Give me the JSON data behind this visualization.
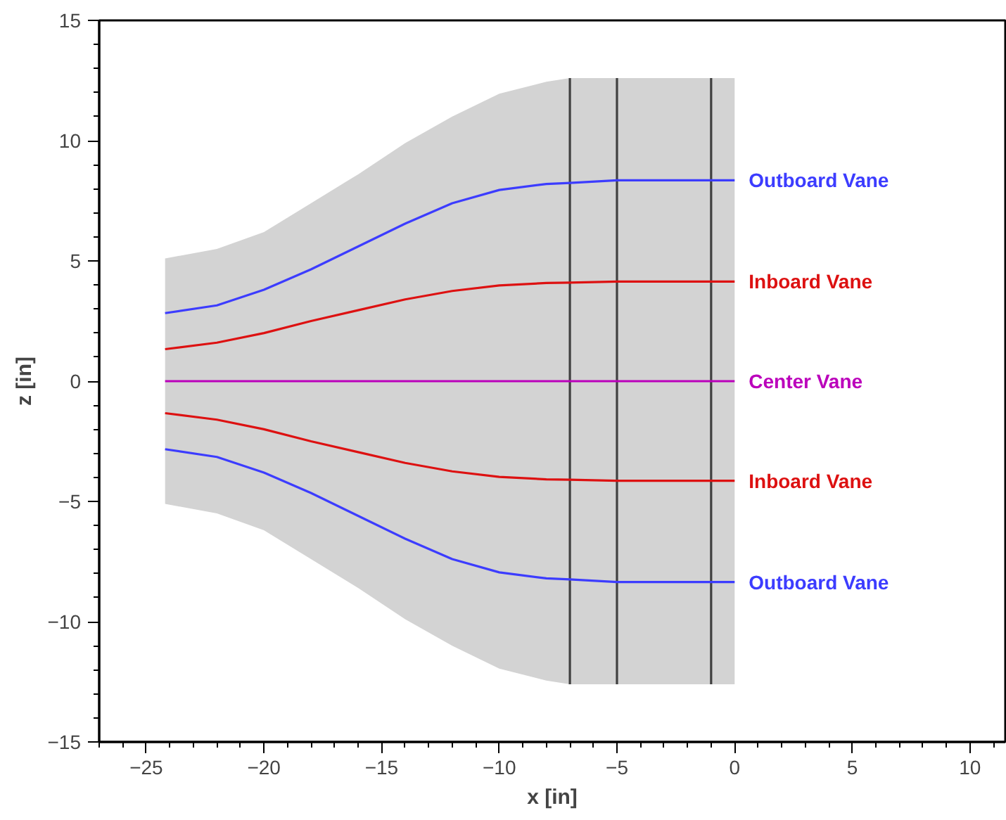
{
  "chart_data": {
    "type": "line",
    "xlabel": "x [in]",
    "ylabel": "z [in]",
    "xlim": [
      -27,
      11.5
    ],
    "ylim": [
      -15,
      15
    ],
    "xticks": [
      -25,
      -20,
      -15,
      -10,
      -5,
      0,
      5,
      10
    ],
    "yticks": [
      -15,
      -10,
      -5,
      0,
      5,
      10,
      15
    ],
    "grid": false,
    "legend": false,
    "marker": "none",
    "line_style": "solid",
    "series": [
      {
        "type": "area",
        "color": "#d3d3d3",
        "x": [
          -24.2,
          -22,
          -20,
          -18,
          -16,
          -14,
          -12,
          -10,
          -8,
          -7,
          -5,
          -1,
          0
        ],
        "values": [
          5.1,
          5.5,
          6.2,
          7.4,
          8.6,
          9.9,
          11.0,
          11.95,
          12.45,
          12.6,
          12.6,
          12.6,
          12.6
        ]
      },
      {
        "type": "area",
        "color": "#d3d3d3",
        "x": [
          -24.2,
          -22,
          -20,
          -18,
          -16,
          -14,
          -12,
          -10,
          -8,
          -7,
          -5,
          -1,
          0
        ],
        "values": [
          -5.1,
          -5.5,
          -6.2,
          -7.4,
          -8.6,
          -9.9,
          -11.0,
          -11.95,
          -12.45,
          -12.6,
          -12.6,
          -12.6,
          -12.6
        ]
      },
      {
        "color": "#404040",
        "x": [
          -7,
          -7
        ],
        "values": [
          -12.6,
          12.6
        ]
      },
      {
        "color": "#404040",
        "x": [
          -5,
          -5
        ],
        "values": [
          -12.6,
          12.6
        ]
      },
      {
        "color": "#404040",
        "x": [
          -1,
          -1
        ],
        "values": [
          -12.6,
          12.6
        ]
      },
      {
        "name": "Outboard Vane",
        "color": "#3c3cff",
        "x": [
          -24.2,
          -22,
          -20,
          -18,
          -16,
          -14,
          -12,
          -10,
          -8,
          -7,
          -5,
          0
        ],
        "values": [
          2.83,
          3.15,
          3.8,
          4.65,
          5.6,
          6.55,
          7.4,
          7.95,
          8.2,
          8.24,
          8.35,
          8.35
        ]
      },
      {
        "name": "Inboard Vane",
        "color": "#dd1111",
        "x": [
          -24.2,
          -22,
          -20,
          -18,
          -16,
          -14,
          -12,
          -10,
          -8,
          -7,
          -5,
          0
        ],
        "values": [
          1.33,
          1.6,
          2.0,
          2.5,
          2.95,
          3.4,
          3.75,
          3.98,
          4.08,
          4.1,
          4.14,
          4.14
        ]
      },
      {
        "name": "Center Vane",
        "color": "#bb00bb",
        "x": [
          -24.2,
          0
        ],
        "values": [
          0,
          0
        ]
      },
      {
        "name": "Inboard Vane",
        "color": "#dd1111",
        "x": [
          -24.2,
          -22,
          -20,
          -18,
          -16,
          -14,
          -12,
          -10,
          -8,
          -7,
          -5,
          0
        ],
        "values": [
          -1.33,
          -1.6,
          -2.0,
          -2.5,
          -2.95,
          -3.4,
          -3.75,
          -3.98,
          -4.08,
          -4.1,
          -4.14,
          -4.14
        ]
      },
      {
        "name": "Outboard Vane",
        "color": "#3c3cff",
        "x": [
          -24.2,
          -22,
          -20,
          -18,
          -16,
          -14,
          -12,
          -10,
          -8,
          -7,
          -5,
          0
        ],
        "values": [
          -2.83,
          -3.15,
          -3.8,
          -4.65,
          -5.6,
          -6.55,
          -7.4,
          -7.95,
          -8.2,
          -8.24,
          -8.35,
          -8.35
        ]
      }
    ]
  }
}
